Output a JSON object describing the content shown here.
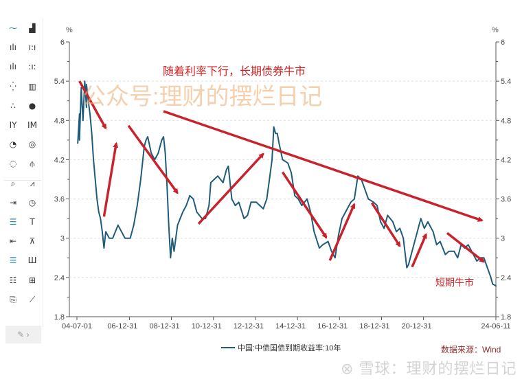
{
  "toolbar": {
    "icons": [
      [
        "line-chart-icon",
        "area-chart-icon"
      ],
      [
        "bar-chart-icon",
        "bar-dotted-icon"
      ],
      [
        "column-chart-icon",
        "column-dotted-icon"
      ],
      [
        "scatter-icon",
        "radar-bar-icon"
      ],
      [
        "dot-scatter-icon",
        "bubble-icon"
      ],
      [
        "year-icon",
        "month-icon"
      ],
      [
        "pie-icon",
        "donut-icon"
      ],
      [
        "ring-icon",
        "tree-icon"
      ],
      [
        "zoom-chart-icon",
        "area-line-icon"
      ],
      [
        "insert-icon",
        "clock-icon"
      ],
      [
        "grid-lines-icon",
        "text-box-icon"
      ],
      [
        "insert-right-icon",
        "top-axis-icon"
      ],
      [
        "horizontal-lines-icon",
        "bar-group-icon"
      ],
      [
        "list-icon",
        "add-box-icon"
      ],
      [
        "export-icon",
        "trend-line-icon"
      ]
    ],
    "edit_label": "✎ ›"
  },
  "chart_data": {
    "type": "line",
    "y_unit_left": "%",
    "y_unit_right": "%",
    "ylim": [
      1.8,
      6
    ],
    "yticks": [
      "6",
      "5.4",
      "4.8",
      "4.2",
      "3.6",
      "3",
      "2.4",
      "1.8"
    ],
    "xlim": [
      "2004-07-01",
      "2024-06-11"
    ],
    "xticks": [
      {
        "date": "2004-07-01",
        "label": "04-07-01"
      },
      {
        "date": "2006-12-31",
        "label": "06-12-31"
      },
      {
        "date": "2008-12-31",
        "label": "08-12-31"
      },
      {
        "date": "2010-12-31",
        "label": "10-12-31"
      },
      {
        "date": "2012-12-31",
        "label": "12-12-31"
      },
      {
        "date": "2014-12-31",
        "label": "14-12-31"
      },
      {
        "date": "2016-12-31",
        "label": "16-12-31"
      },
      {
        "date": "2018-12-31",
        "label": "18-12-31"
      },
      {
        "date": "2020-12-31",
        "label": "20-12-31"
      },
      {
        "date": "2024-06-11",
        "label": "24-06-11"
      }
    ],
    "grid": "horizontal dashed",
    "legend_position": "bottom",
    "series": [
      {
        "name": "中国:中债国债到期收益率:10年",
        "color": "#1f5c7a",
        "points": [
          [
            "2004-07",
            4.45
          ],
          [
            "2004-08",
            4.9
          ],
          [
            "2004-08",
            4.5
          ],
          [
            "2004-09",
            5.3
          ],
          [
            "2004-10",
            4.8
          ],
          [
            "2004-11",
            5.4
          ],
          [
            "2004-12",
            5.0
          ],
          [
            "2004-12",
            5.35
          ],
          [
            "2005-01",
            5.1
          ],
          [
            "2005-02",
            4.9
          ],
          [
            "2005-03",
            4.6
          ],
          [
            "2005-04",
            4.2
          ],
          [
            "2005-06",
            3.6
          ],
          [
            "2005-07",
            3.4
          ],
          [
            "2005-08",
            3.3
          ],
          [
            "2005-09",
            3.1
          ],
          [
            "2005-10",
            2.85
          ],
          [
            "2005-11",
            3.1
          ],
          [
            "2006-01",
            3.0
          ],
          [
            "2006-03",
            3.0
          ],
          [
            "2006-06",
            3.2
          ],
          [
            "2006-08",
            3.1
          ],
          [
            "2006-10",
            3.0
          ],
          [
            "2007-01",
            3.0
          ],
          [
            "2007-03",
            3.2
          ],
          [
            "2007-05",
            3.5
          ],
          [
            "2007-07",
            3.9
          ],
          [
            "2007-09",
            4.4
          ],
          [
            "2007-10",
            4.5
          ],
          [
            "2007-11",
            4.55
          ],
          [
            "2008-01",
            4.3
          ],
          [
            "2008-03",
            4.2
          ],
          [
            "2008-05",
            4.3
          ],
          [
            "2008-07",
            4.5
          ],
          [
            "2008-08",
            4.55
          ],
          [
            "2008-09",
            4.3
          ],
          [
            "2008-10",
            3.8
          ],
          [
            "2008-11",
            3.2
          ],
          [
            "2008-12",
            2.7
          ],
          [
            "2009-01",
            3.0
          ],
          [
            "2009-02",
            2.8
          ],
          [
            "2009-04",
            3.2
          ],
          [
            "2009-07",
            3.4
          ],
          [
            "2009-09",
            3.5
          ],
          [
            "2009-11",
            3.65
          ],
          [
            "2010-01",
            3.6
          ],
          [
            "2010-03",
            3.4
          ],
          [
            "2010-06",
            3.3
          ],
          [
            "2010-08",
            3.3
          ],
          [
            "2010-10",
            3.5
          ],
          [
            "2010-11",
            3.85
          ],
          [
            "2011-01",
            3.9
          ],
          [
            "2011-03",
            3.95
          ],
          [
            "2011-06",
            3.85
          ],
          [
            "2011-08",
            4.05
          ],
          [
            "2011-09",
            4.1
          ],
          [
            "2011-11",
            3.6
          ],
          [
            "2012-01",
            3.5
          ],
          [
            "2012-03",
            3.55
          ],
          [
            "2012-06",
            3.3
          ],
          [
            "2012-08",
            3.35
          ],
          [
            "2012-10",
            3.55
          ],
          [
            "2013-01",
            3.55
          ],
          [
            "2013-03",
            3.5
          ],
          [
            "2013-05",
            3.45
          ],
          [
            "2013-07",
            3.6
          ],
          [
            "2013-08",
            3.8
          ],
          [
            "2013-10",
            4.2
          ],
          [
            "2013-11",
            4.7
          ],
          [
            "2013-12",
            4.6
          ],
          [
            "2014-01",
            4.6
          ],
          [
            "2014-02",
            4.45
          ],
          [
            "2014-04",
            4.2
          ],
          [
            "2014-07",
            4.15
          ],
          [
            "2014-09",
            4.0
          ],
          [
            "2014-11",
            3.65
          ],
          [
            "2015-01",
            3.6
          ],
          [
            "2015-03",
            3.5
          ],
          [
            "2015-06",
            3.6
          ],
          [
            "2015-08",
            3.4
          ],
          [
            "2015-10",
            3.1
          ],
          [
            "2016-01",
            2.85
          ],
          [
            "2016-03",
            2.9
          ],
          [
            "2016-06",
            2.95
          ],
          [
            "2016-08",
            2.8
          ],
          [
            "2016-10",
            2.7
          ],
          [
            "2016-12",
            3.05
          ],
          [
            "2017-02",
            3.3
          ],
          [
            "2017-04",
            3.4
          ],
          [
            "2017-07",
            3.55
          ],
          [
            "2017-09",
            3.6
          ],
          [
            "2017-11",
            3.95
          ],
          [
            "2018-01",
            3.9
          ],
          [
            "2018-03",
            3.75
          ],
          [
            "2018-05",
            3.6
          ],
          [
            "2018-08",
            3.55
          ],
          [
            "2018-10",
            3.5
          ],
          [
            "2018-12",
            3.25
          ],
          [
            "2019-02",
            3.15
          ],
          [
            "2019-04",
            3.35
          ],
          [
            "2019-07",
            3.25
          ],
          [
            "2019-09",
            3.1
          ],
          [
            "2019-11",
            3.15
          ],
          [
            "2020-01",
            3.0
          ],
          [
            "2020-03",
            2.55
          ],
          [
            "2020-04",
            2.6
          ],
          [
            "2020-07",
            2.9
          ],
          [
            "2020-09",
            3.1
          ],
          [
            "2020-11",
            3.3
          ],
          [
            "2021-01",
            3.15
          ],
          [
            "2021-03",
            3.25
          ],
          [
            "2021-06",
            3.1
          ],
          [
            "2021-08",
            2.9
          ],
          [
            "2021-10",
            2.95
          ],
          [
            "2022-01",
            2.75
          ],
          [
            "2022-03",
            2.8
          ],
          [
            "2022-06",
            2.8
          ],
          [
            "2022-08",
            2.7
          ],
          [
            "2022-10",
            2.9
          ],
          [
            "2022-12",
            2.85
          ],
          [
            "2023-02",
            2.9
          ],
          [
            "2023-04",
            2.8
          ],
          [
            "2023-07",
            2.65
          ],
          [
            "2023-09",
            2.7
          ],
          [
            "2023-11",
            2.7
          ],
          [
            "2024-01",
            2.55
          ],
          [
            "2024-03",
            2.4
          ],
          [
            "2024-04",
            2.3
          ],
          [
            "2024-06",
            2.27
          ]
        ]
      }
    ],
    "annotations": {
      "arrow_color": "#c8232c",
      "arrows": [
        [
          [
            "2004-08",
            5.4
          ],
          [
            "2005-11",
            4.68
          ]
        ],
        [
          [
            "2005-10",
            3.33
          ],
          [
            "2006-05",
            4.45
          ]
        ],
        [
          [
            "2006-12",
            4.72
          ],
          [
            "2009-04",
            3.69
          ]
        ],
        [
          [
            "2010-04",
            3.22
          ],
          [
            "2013-05",
            4.29
          ]
        ],
        [
          [
            "2008-08",
            4.94
          ],
          [
            "2023-10",
            3.27
          ]
        ],
        [
          [
            "2014-04",
            4.01
          ],
          [
            "2016-05",
            3.01
          ]
        ],
        [
          [
            "2016-07",
            2.66
          ],
          [
            "2017-09",
            3.52
          ]
        ],
        [
          [
            "2018-07",
            3.54
          ],
          [
            "2019-11",
            2.88
          ]
        ],
        [
          [
            "2020-06",
            2.56
          ],
          [
            "2021-02",
            3.06
          ]
        ],
        [
          [
            "2022-02",
            3.08
          ],
          [
            "2023-11",
            2.64
          ]
        ]
      ],
      "main_text": "随着利率下行，长期债券牛市",
      "short_text": "短期牛市"
    }
  },
  "legend": {
    "label": "中国:中债国债到期收益率:10年"
  },
  "source": "数据来源：Wind",
  "watermark_top": "公众号:理财的摆烂日记",
  "watermark_bottom": "雪球：理财的摆烂日记"
}
